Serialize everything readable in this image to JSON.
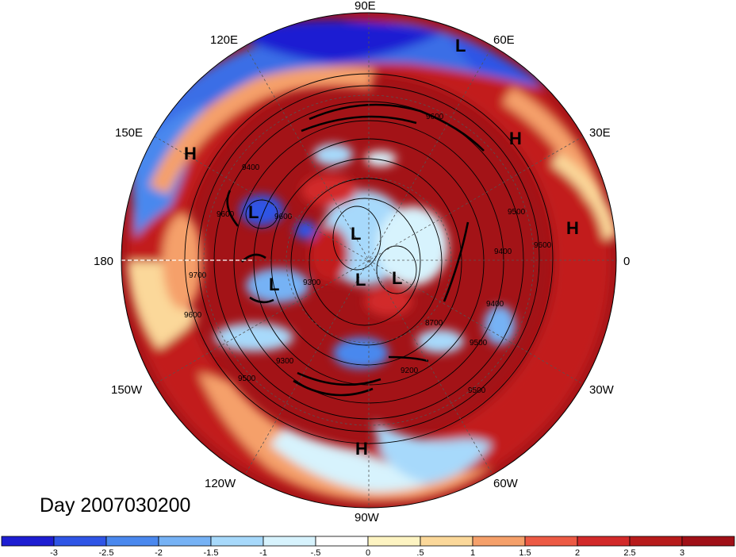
{
  "title": "Day 2007030200",
  "longitude_labels": [
    {
      "text": "90E",
      "lon": 90
    },
    {
      "text": "60E",
      "lon": 60
    },
    {
      "text": "30E",
      "lon": 30
    },
    {
      "text": "0",
      "lon": 0
    },
    {
      "text": "30W",
      "lon": -30
    },
    {
      "text": "60W",
      "lon": -60
    },
    {
      "text": "90W",
      "lon": -90
    },
    {
      "text": "120W",
      "lon": -120
    },
    {
      "text": "150W",
      "lon": -150
    },
    {
      "text": "180",
      "lon": 180
    },
    {
      "text": "150E",
      "lon": 150
    },
    {
      "text": "120E",
      "lon": 120
    }
  ],
  "pressure_centers": [
    {
      "type": "L",
      "name": "low-siberia-north"
    },
    {
      "type": "H",
      "name": "high-russia"
    },
    {
      "type": "H",
      "name": "high-europe"
    },
    {
      "type": "H",
      "name": "high-east-asia"
    },
    {
      "type": "L",
      "name": "low-kamchatka"
    },
    {
      "type": "L",
      "name": "low-arctic-1"
    },
    {
      "type": "L",
      "name": "low-bering"
    },
    {
      "type": "L",
      "name": "low-arctic-2"
    },
    {
      "type": "L",
      "name": "low-greenland"
    },
    {
      "type": "H",
      "name": "high-caribbean"
    }
  ],
  "contour_labels": [
    "9600",
    "9400",
    "9600",
    "9500",
    "9600",
    "9400",
    "9500",
    "8700",
    "9200",
    "9300",
    "9500",
    "9600",
    "9500",
    "9700",
    "9600",
    "9400",
    "9300"
  ],
  "colorbar": {
    "labels": [
      "-3",
      "-2.5",
      "-2",
      "-1.5",
      "-1",
      "-.5",
      "0",
      ".5",
      "1",
      "1.5",
      "2",
      "2.5",
      "3"
    ],
    "colors": [
      "#1e1ed2",
      "#2f55e6",
      "#4a88ee",
      "#76b2f5",
      "#a7d9fb",
      "#d7f3fd",
      "#ffffff",
      "#fdf4c2",
      "#fbd89a",
      "#f5a06a",
      "#ec5a44",
      "#d22a2a",
      "#b71b1b",
      "#a01017"
    ]
  }
}
